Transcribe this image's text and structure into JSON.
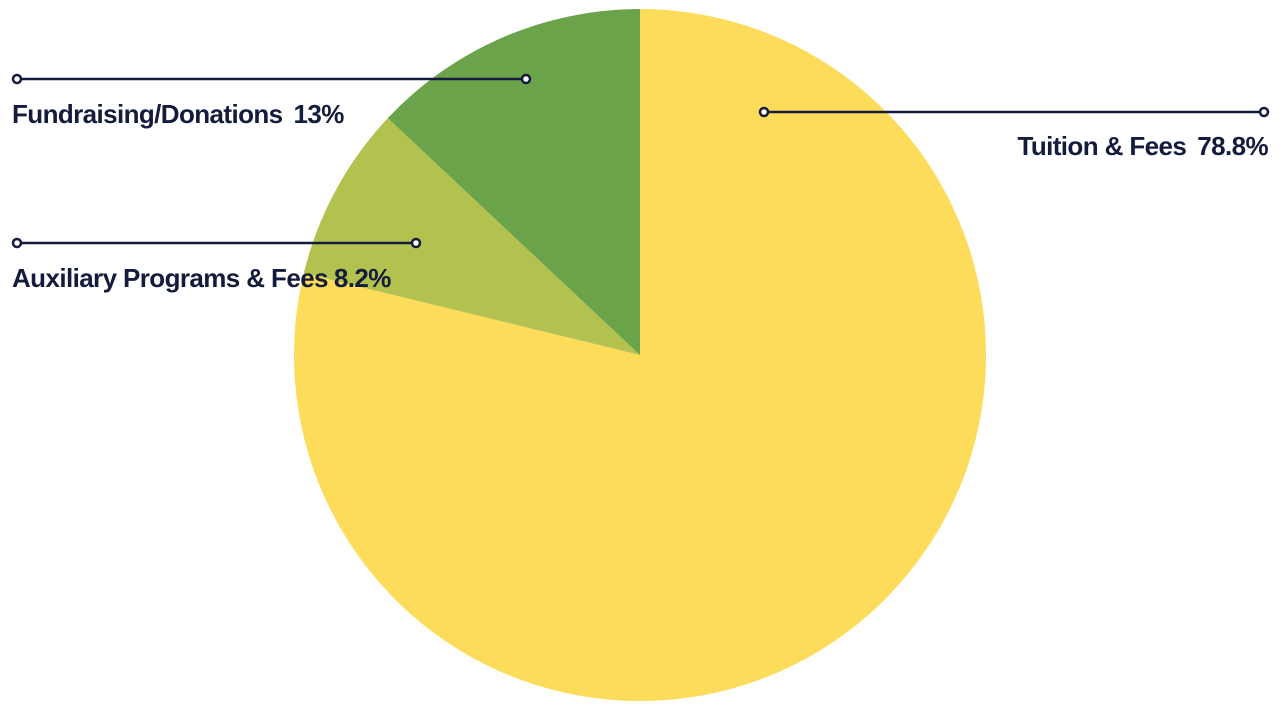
{
  "chart_data": {
    "type": "pie",
    "slices": [
      {
        "label": "Tuition & Fees",
        "value": 78.8,
        "value_label": "78.8%",
        "color": "#fddc5c"
      },
      {
        "label": "Auxiliary Programs & Fees",
        "value": 8.2,
        "value_label": "8.2%",
        "color": "#b3c24f"
      },
      {
        "label": "Fundraising/Donations",
        "value": 13,
        "value_label": "13%",
        "color": "#6ba34a"
      }
    ],
    "label_color": "#141b3c"
  }
}
